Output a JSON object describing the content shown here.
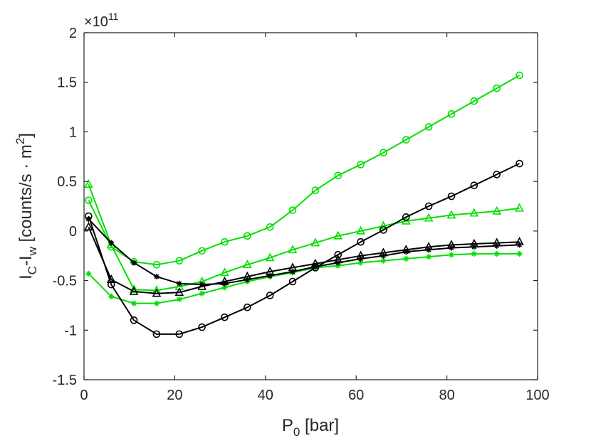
{
  "chart_data": {
    "type": "line",
    "title": "",
    "xlabel": {
      "base": "P",
      "sub": "0",
      "rest": " [bar]"
    },
    "ylabel": {
      "a": "I",
      "a_sub": "C",
      "mid": "-I",
      "b_sub": "w",
      "rest": " [counts/s · m",
      "sup": "2",
      "end": "]"
    },
    "y_exponent": {
      "prefix": "×10",
      "power": "11"
    },
    "xlim": [
      0,
      100
    ],
    "ylim": [
      -1.5,
      2
    ],
    "xticks": [
      0,
      20,
      40,
      60,
      80,
      100
    ],
    "yticks": [
      -1.5,
      -1,
      -0.5,
      0,
      0.5,
      1,
      1.5,
      2
    ],
    "xtick_labels": [
      "0",
      "20",
      "40",
      "60",
      "80",
      "100"
    ],
    "ytick_labels": [
      "-1.5",
      "-1",
      "-0.5",
      "0",
      "0.5",
      "1",
      "1.5",
      "2"
    ],
    "grid": false,
    "x": [
      1,
      6,
      11,
      16,
      21,
      26,
      31,
      36,
      41,
      46,
      51,
      56,
      61,
      66,
      71,
      76,
      81,
      86,
      91,
      96
    ],
    "series": [
      {
        "name": "green-circle",
        "color": "#00e000",
        "marker": "circle",
        "values": [
          0.31,
          -0.16,
          -0.31,
          -0.34,
          -0.3,
          -0.2,
          -0.11,
          -0.05,
          0.04,
          0.21,
          0.41,
          0.56,
          0.67,
          0.79,
          0.92,
          1.05,
          1.18,
          1.31,
          1.44,
          1.57
        ]
      },
      {
        "name": "green-triangle",
        "color": "#00e000",
        "marker": "triangle",
        "values": [
          0.47,
          -0.14,
          -0.59,
          -0.6,
          -0.56,
          -0.51,
          -0.42,
          -0.34,
          -0.27,
          -0.19,
          -0.12,
          -0.05,
          0.0,
          0.05,
          0.1,
          0.13,
          0.16,
          0.18,
          0.2,
          0.23
        ]
      },
      {
        "name": "green-asterisk",
        "color": "#00e000",
        "marker": "asterisk",
        "values": [
          -0.43,
          -0.66,
          -0.73,
          -0.73,
          -0.69,
          -0.63,
          -0.57,
          -0.51,
          -0.46,
          -0.42,
          -0.37,
          -0.35,
          -0.32,
          -0.3,
          -0.28,
          -0.26,
          -0.24,
          -0.23,
          -0.23,
          -0.23
        ]
      },
      {
        "name": "black-circle",
        "color": "#000000",
        "marker": "circle",
        "values": [
          0.15,
          -0.54,
          -0.9,
          -1.04,
          -1.04,
          -0.97,
          -0.87,
          -0.77,
          -0.65,
          -0.51,
          -0.37,
          -0.24,
          -0.11,
          0.01,
          0.14,
          0.25,
          0.35,
          0.46,
          0.57,
          0.68
        ]
      },
      {
        "name": "black-triangle",
        "color": "#000000",
        "marker": "triangle",
        "values": [
          0.04,
          -0.49,
          -0.61,
          -0.63,
          -0.62,
          -0.56,
          -0.51,
          -0.46,
          -0.41,
          -0.37,
          -0.33,
          -0.29,
          -0.25,
          -0.22,
          -0.19,
          -0.16,
          -0.14,
          -0.13,
          -0.12,
          -0.11
        ]
      },
      {
        "name": "black-asterisk",
        "color": "#000000",
        "marker": "asterisk",
        "values": [
          0.12,
          -0.12,
          -0.32,
          -0.46,
          -0.53,
          -0.54,
          -0.53,
          -0.49,
          -0.45,
          -0.41,
          -0.36,
          -0.32,
          -0.28,
          -0.25,
          -0.21,
          -0.19,
          -0.17,
          -0.16,
          -0.15,
          -0.14
        ]
      }
    ]
  }
}
